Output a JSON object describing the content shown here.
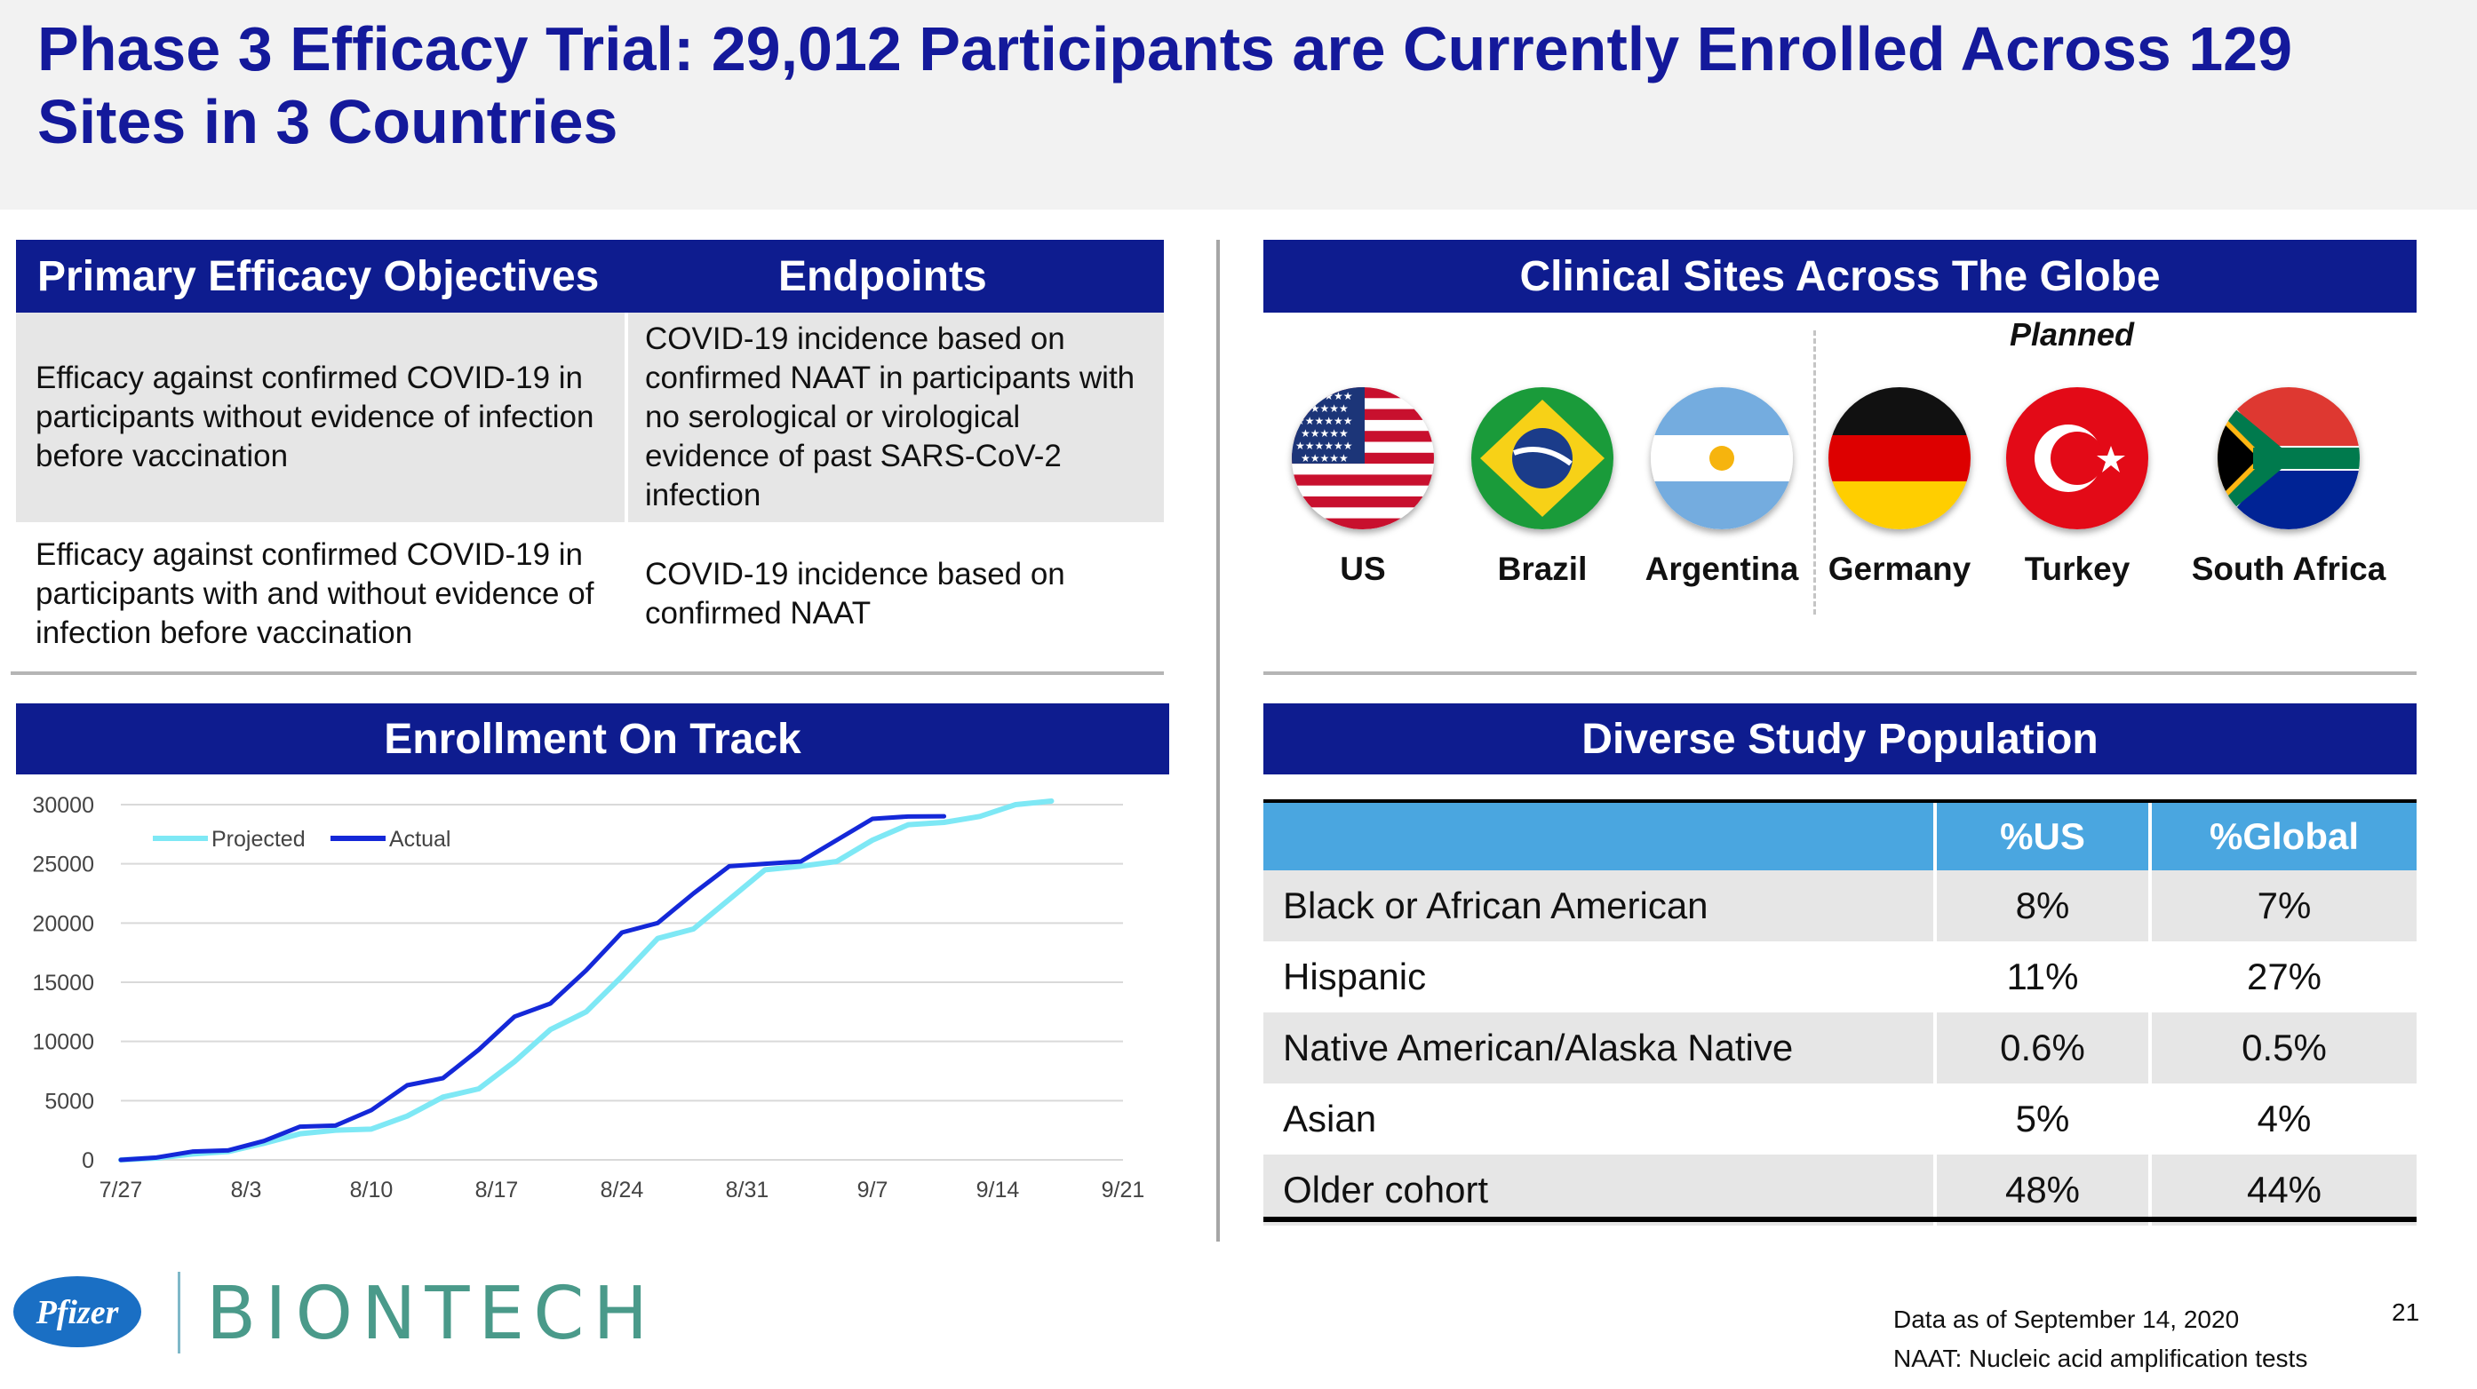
{
  "title": "Phase 3 Efficacy Trial: 29,012 Participants are Currently Enrolled Across 129 Sites in 3 Countries",
  "objectives": {
    "header_objectives": "Primary Efficacy Objectives",
    "header_endpoints": "Endpoints",
    "rows": [
      {
        "objective": "Efficacy against confirmed COVID-19 in participants without evidence of infection before vaccination",
        "endpoint": "COVID-19 incidence based on confirmed NAAT in participants with no serological or virological evidence of past SARS-CoV-2 infection"
      },
      {
        "objective": "Efficacy against confirmed COVID-19 in participants with and without evidence of infection before vaccination",
        "endpoint": "COVID-19 incidence based on confirmed NAAT"
      }
    ]
  },
  "sites": {
    "header": "Clinical Sites Across The Globe",
    "planned_label": "Planned",
    "countries": [
      {
        "name": "US",
        "flag": "us-flag"
      },
      {
        "name": "Brazil",
        "flag": "brazil-flag"
      },
      {
        "name": "Argentina",
        "flag": "argentina-flag"
      },
      {
        "name": "Germany",
        "flag": "germany-flag"
      },
      {
        "name": "Turkey",
        "flag": "turkey-flag"
      },
      {
        "name": "South Africa",
        "flag": "south-africa-flag"
      }
    ]
  },
  "enrollment": {
    "header": "Enrollment On Track"
  },
  "chart_data": {
    "type": "line",
    "title": "Enrollment On Track",
    "xlabel": "",
    "ylabel": "",
    "x_tick_labels": [
      "7/27",
      "8/3",
      "8/10",
      "8/17",
      "8/24",
      "8/31",
      "9/7",
      "9/14",
      "9/21"
    ],
    "y_ticks": [
      0,
      5000,
      10000,
      15000,
      20000,
      25000,
      30000
    ],
    "xlim": [
      0,
      56
    ],
    "ylim": [
      0,
      30000
    ],
    "grid": true,
    "legend": "top-left",
    "series": [
      {
        "name": "Projected",
        "color": "#7ee8f5",
        "x": [
          0,
          2,
          4,
          6,
          8,
          10,
          12,
          14,
          16,
          18,
          20,
          22,
          24,
          26,
          28,
          30,
          32,
          34,
          36,
          38,
          40,
          42,
          44,
          46,
          48,
          50,
          52
        ],
        "y": [
          0,
          150,
          500,
          700,
          1400,
          2200,
          2500,
          2600,
          3700,
          5300,
          6000,
          8300,
          11000,
          12500,
          15500,
          18700,
          19500,
          22000,
          24500,
          24800,
          25200,
          27000,
          28300,
          28500,
          29000,
          30000,
          30300
        ]
      },
      {
        "name": "Actual",
        "color": "#1428d8",
        "x": [
          0,
          2,
          4,
          6,
          8,
          10,
          12,
          14,
          16,
          18,
          20,
          22,
          24,
          26,
          28,
          30,
          32,
          34,
          36,
          38,
          40,
          42,
          44,
          46
        ],
        "y": [
          0,
          200,
          700,
          800,
          1600,
          2800,
          2900,
          4200,
          6300,
          6900,
          9300,
          12100,
          13200,
          16000,
          19200,
          20000,
          22500,
          24800,
          25000,
          25200,
          27000,
          28800,
          29000,
          29012
        ]
      }
    ]
  },
  "population": {
    "header": "Diverse Study Population",
    "col_us": "%US",
    "col_global": "%Global",
    "rows": [
      {
        "label": "Black or African American",
        "us": "8%",
        "global": "7%"
      },
      {
        "label": "Hispanic",
        "us": "11%",
        "global": "27%"
      },
      {
        "label": "Native American/Alaska Native",
        "us": "0.6%",
        "global": "0.5%"
      },
      {
        "label": "Asian",
        "us": "5%",
        "global": "4%"
      },
      {
        "label": "Older cohort",
        "us": "48%",
        "global": "44%"
      }
    ]
  },
  "footer": {
    "data_date": "Data as of September 14, 2020",
    "naat_note": "NAAT: Nucleic acid amplification tests",
    "page_number": "21",
    "logo_pfizer": "Pfizer",
    "logo_biontech": "BIONTECH"
  }
}
